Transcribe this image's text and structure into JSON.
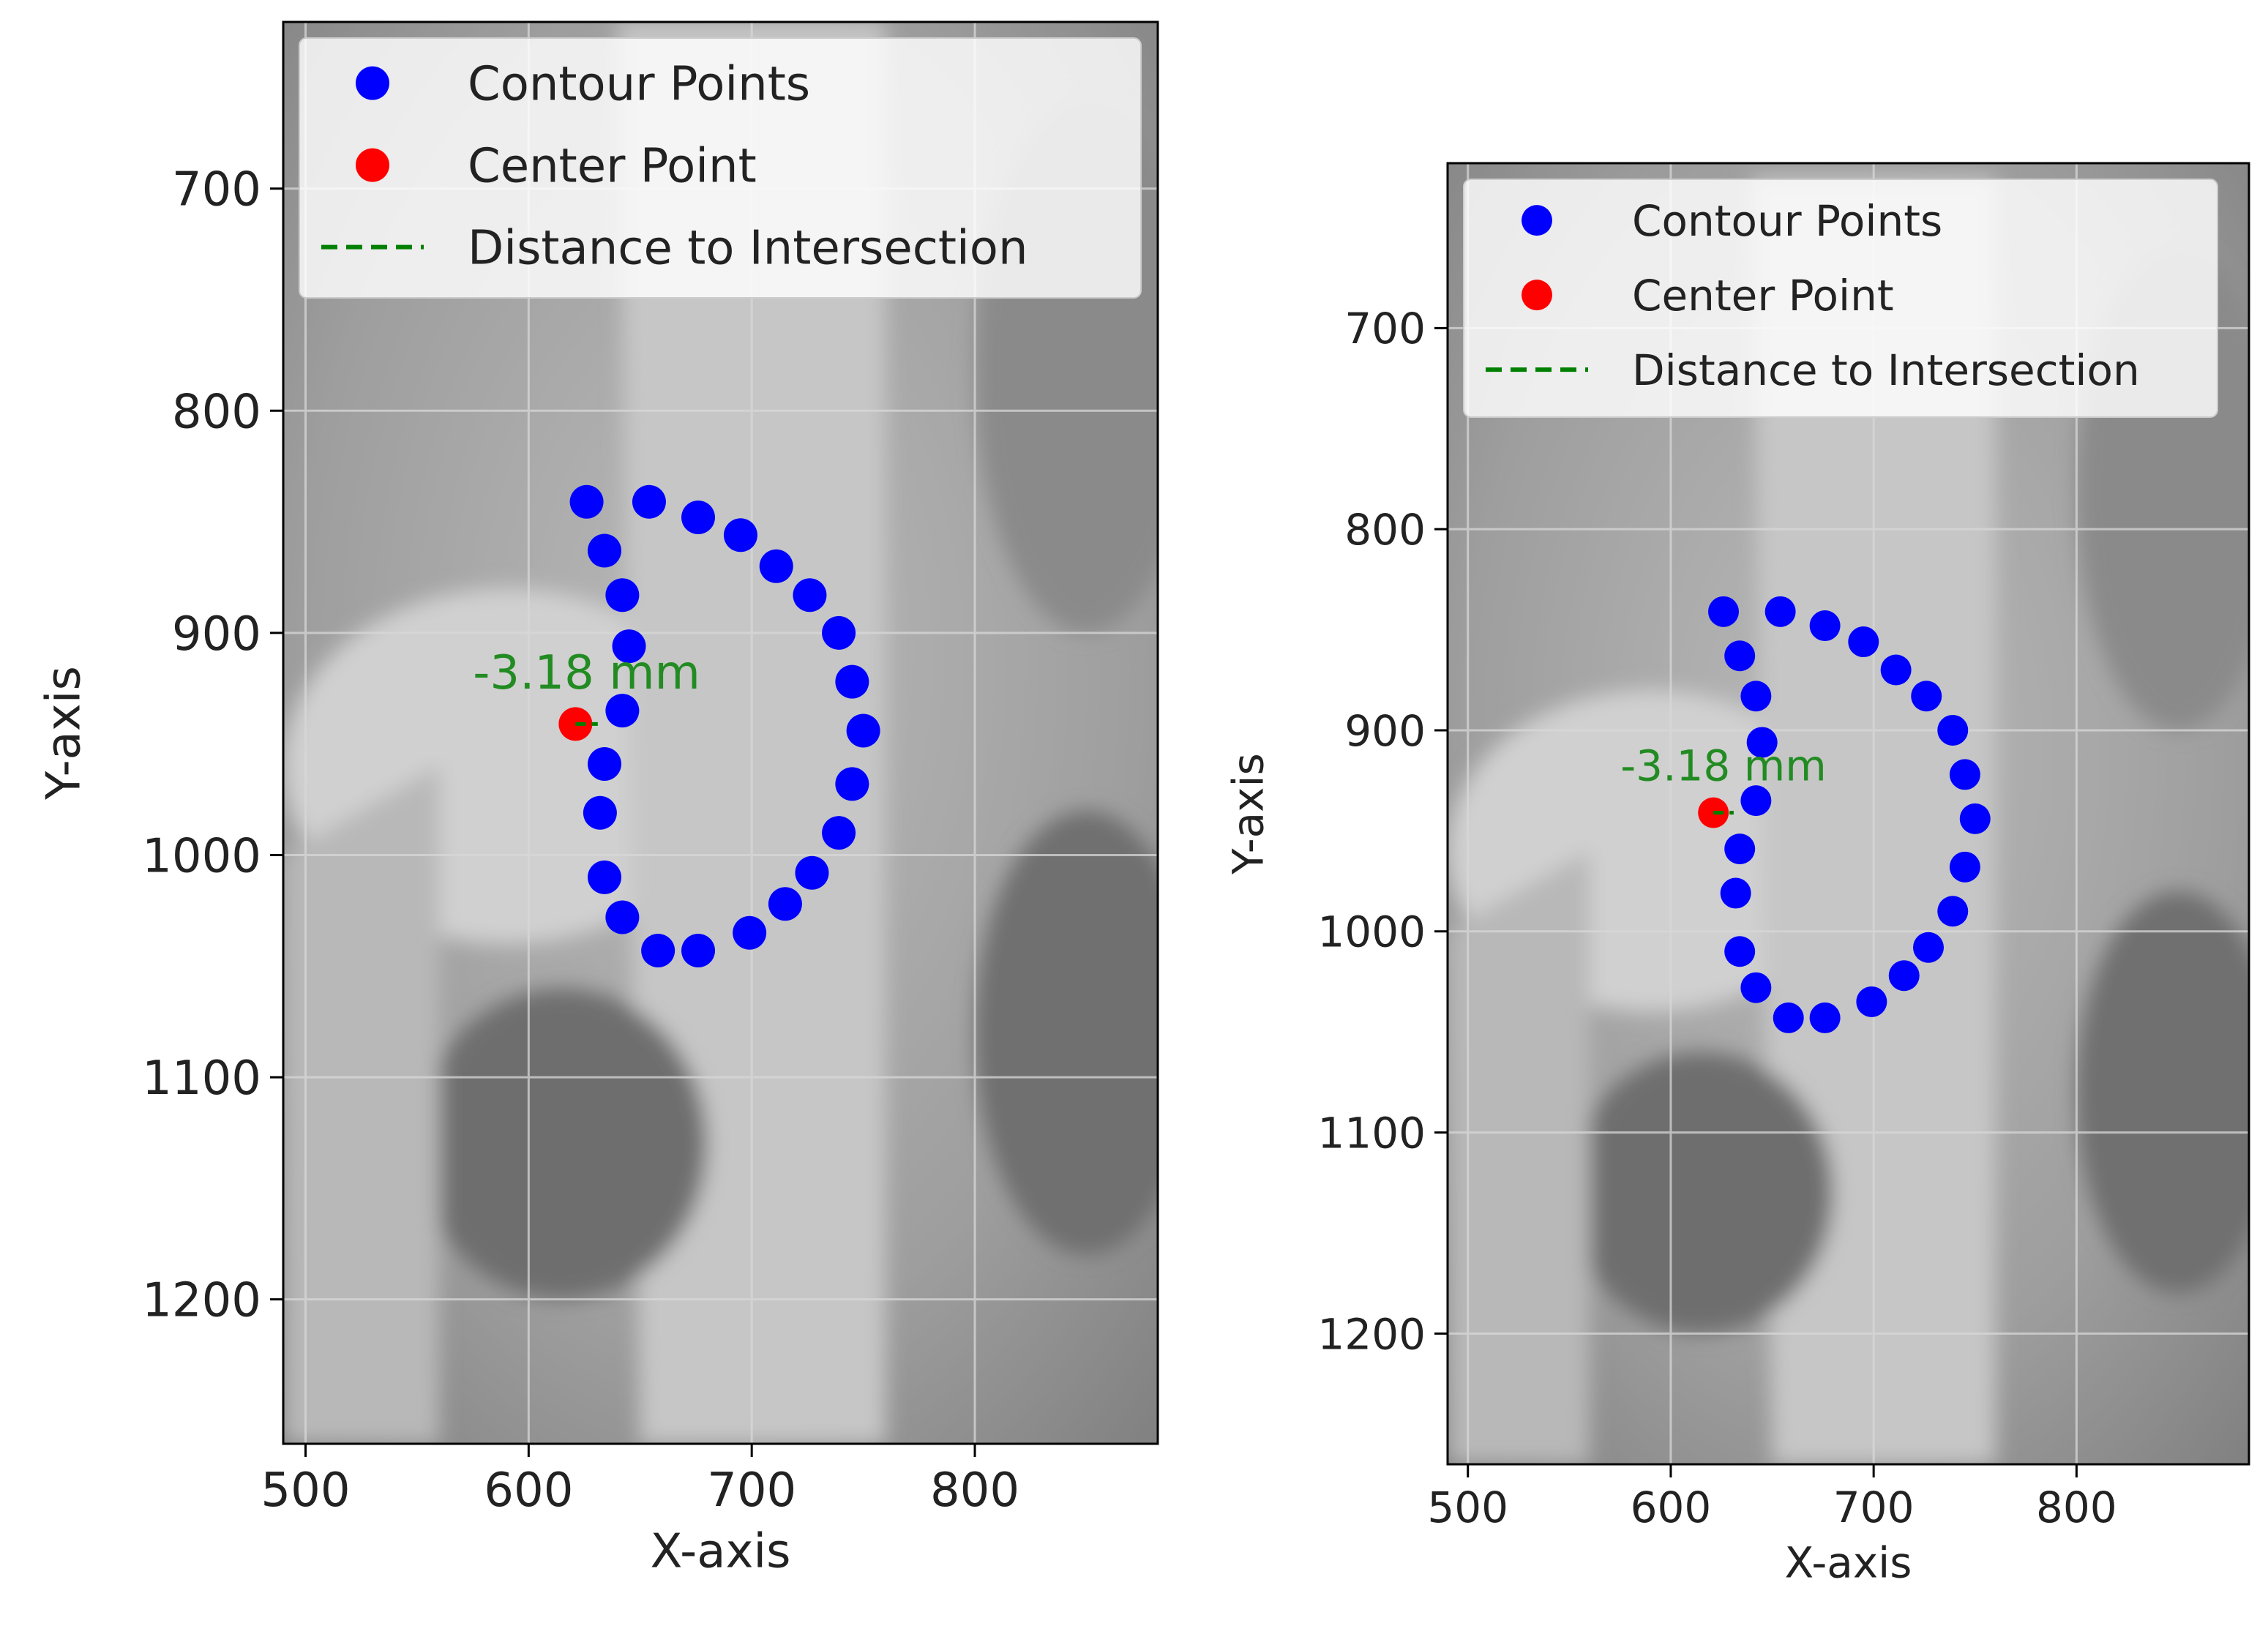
{
  "chart_data": [
    {
      "type": "scatter",
      "xlabel": "X-axis",
      "ylabel": "Y-axis",
      "xlim": [
        490,
        882
      ],
      "ylim": [
        1265,
        625
      ],
      "y_inverted": true,
      "xticks": [
        500,
        600,
        700,
        800
      ],
      "yticks": [
        700,
        800,
        900,
        1000,
        1100,
        1200
      ],
      "grid": true,
      "background": "grayscale hip x-ray",
      "legend_position": "upper-left",
      "legend": [
        {
          "label": "Contour Points",
          "marker": "dot",
          "color": "#0000ff"
        },
        {
          "label": "Center Point",
          "marker": "dot",
          "color": "#ff0000"
        },
        {
          "label": "Distance to Intersection",
          "marker": "dashed-line",
          "color": "#008000"
        }
      ],
      "series": [
        {
          "name": "Contour Points",
          "color": "#0000ff",
          "points": [
            [
              626,
              841
            ],
            [
              654,
              841
            ],
            [
              676,
              848
            ],
            [
              695,
              856
            ],
            [
              711,
              870
            ],
            [
              726,
              883
            ],
            [
              739,
              900
            ],
            [
              745,
              922
            ],
            [
              750,
              944
            ],
            [
              745,
              968
            ],
            [
              739,
              990
            ],
            [
              727,
              1008
            ],
            [
              715,
              1022
            ],
            [
              699,
              1035
            ],
            [
              676,
              1043
            ],
            [
              658,
              1043
            ],
            [
              642,
              1028
            ],
            [
              634,
              1010
            ],
            [
              632,
              981
            ],
            [
              634,
              959
            ],
            [
              642,
              935
            ],
            [
              645,
              906
            ],
            [
              642,
              883
            ],
            [
              634,
              863
            ]
          ]
        },
        {
          "name": "Center Point",
          "color": "#ff0000",
          "points": [
            [
              621,
              941
            ]
          ]
        },
        {
          "name": "Distance to Intersection",
          "color": "#008000",
          "line": [
            [
              621,
              941
            ],
            [
              631,
              941
            ]
          ]
        }
      ],
      "annotations": [
        {
          "text": "-3.18 mm",
          "x": 626,
          "y": 925,
          "color": "#228B22"
        }
      ]
    },
    {
      "type": "scatter",
      "xlabel": "X-axis",
      "ylabel": "Y-axis",
      "xlim": [
        490,
        885
      ],
      "ylim": [
        1265,
        618
      ],
      "y_inverted": true,
      "xticks": [
        500,
        600,
        700,
        800
      ],
      "yticks": [
        700,
        800,
        900,
        1000,
        1100,
        1200
      ],
      "grid": true,
      "background": "grayscale hip x-ray",
      "legend_position": "upper-left",
      "legend": [
        {
          "label": "Contour Points",
          "marker": "dot",
          "color": "#0000ff"
        },
        {
          "label": "Center Point",
          "marker": "dot",
          "color": "#ff0000"
        },
        {
          "label": "Distance to Intersection",
          "marker": "dashed-line",
          "color": "#008000"
        }
      ],
      "series": [
        {
          "name": "Contour Points",
          "color": "#0000ff",
          "points": [
            [
              626,
              841
            ],
            [
              654,
              841
            ],
            [
              676,
              848
            ],
            [
              695,
              856
            ],
            [
              711,
              870
            ],
            [
              726,
              883
            ],
            [
              739,
              900
            ],
            [
              745,
              922
            ],
            [
              750,
              944
            ],
            [
              745,
              968
            ],
            [
              739,
              990
            ],
            [
              727,
              1008
            ],
            [
              715,
              1022
            ],
            [
              699,
              1035
            ],
            [
              676,
              1043
            ],
            [
              658,
              1043
            ],
            [
              642,
              1028
            ],
            [
              634,
              1010
            ],
            [
              632,
              981
            ],
            [
              634,
              959
            ],
            [
              642,
              935
            ],
            [
              645,
              906
            ],
            [
              642,
              883
            ],
            [
              634,
              863
            ]
          ]
        },
        {
          "name": "Center Point",
          "color": "#ff0000",
          "points": [
            [
              621,
              941
            ]
          ]
        },
        {
          "name": "Distance to Intersection",
          "color": "#008000",
          "line": [
            [
              621,
              941
            ],
            [
              631,
              941
            ]
          ]
        }
      ],
      "annotations": [
        {
          "text": "-3.18 mm",
          "x": 626,
          "y": 925,
          "color": "#228B22"
        }
      ]
    }
  ]
}
